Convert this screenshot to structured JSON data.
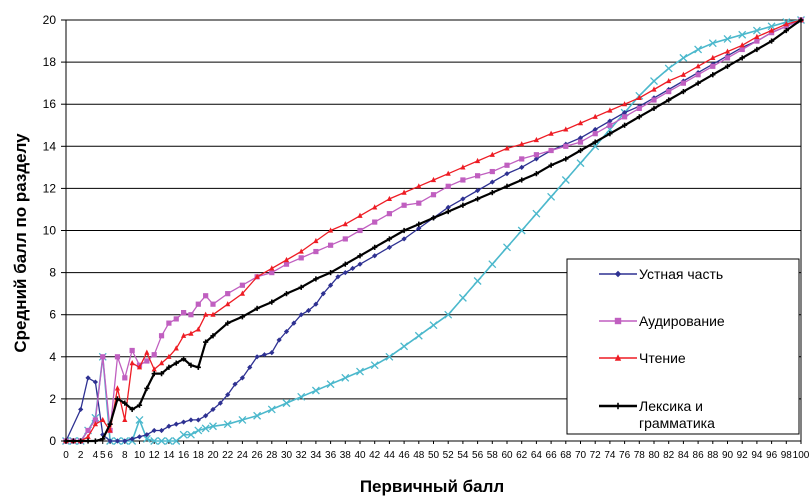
{
  "chart_data": {
    "type": "line",
    "title": "",
    "xlabel": "Первичный балл",
    "ylabel": "Средний балл по разделу",
    "xlim": [
      0,
      100
    ],
    "ylim": [
      0,
      20
    ],
    "yticks": [
      0,
      2,
      4,
      6,
      8,
      10,
      12,
      14,
      16,
      18,
      20
    ],
    "xtick_labels": [
      "0",
      "2",
      "4",
      "5",
      "6",
      "8",
      "10",
      "12",
      "14",
      "16",
      "18",
      "20",
      "22",
      "24",
      "26",
      "28",
      "30",
      "32",
      "34",
      "36",
      "38",
      "40",
      "42",
      "44",
      "46",
      "48",
      "50",
      "52",
      "54",
      "56",
      "58",
      "60",
      "62",
      "64",
      "66",
      "68",
      "70",
      "72",
      "74",
      "76",
      "78",
      "80",
      "82",
      "84",
      "86",
      "88",
      "90",
      "92",
      "94",
      "96",
      "98",
      "100"
    ],
    "grid": "horizontal",
    "legend_position": "lower-right",
    "series": [
      {
        "name": "Устная часть",
        "color": "#2e3192",
        "marker": "diamond",
        "x": [
          0,
          2,
          3,
          4,
          5,
          6,
          7,
          8,
          9,
          10,
          11,
          12,
          13,
          14,
          15,
          16,
          17,
          18,
          19,
          20,
          21,
          22,
          23,
          24,
          25,
          26,
          27,
          28,
          29,
          30,
          31,
          32,
          33,
          34,
          35,
          36,
          37,
          38,
          39,
          40,
          42,
          44,
          46,
          48,
          50,
          52,
          54,
          56,
          58,
          60,
          62,
          64,
          66,
          68,
          70,
          72,
          74,
          76,
          78,
          80,
          82,
          84,
          86,
          88,
          90,
          92,
          94,
          96,
          98,
          100
        ],
        "y": [
          0,
          1.5,
          3,
          2.8,
          0.3,
          0,
          0,
          0,
          0.1,
          0.2,
          0.3,
          0.5,
          0.5,
          0.7,
          0.8,
          0.9,
          1.0,
          1.0,
          1.2,
          1.5,
          1.8,
          2.2,
          2.7,
          3.0,
          3.5,
          4.0,
          4.1,
          4.2,
          4.8,
          5.2,
          5.6,
          6.0,
          6.2,
          6.5,
          7.0,
          7.4,
          7.8,
          8.0,
          8.2,
          8.4,
          8.8,
          9.2,
          9.6,
          10.1,
          10.6,
          11.1,
          11.5,
          11.9,
          12.3,
          12.7,
          13.0,
          13.4,
          13.8,
          14.1,
          14.4,
          14.8,
          15.2,
          15.6,
          15.9,
          16.3,
          16.7,
          17.1,
          17.5,
          17.9,
          18.3,
          18.7,
          19.0,
          19.4,
          19.7,
          20.0
        ]
      },
      {
        "name": "Аудирование",
        "color": "#c05fc0",
        "marker": "square",
        "x": [
          0,
          1,
          2,
          3,
          4,
          5,
          6,
          7,
          8,
          9,
          10,
          11,
          12,
          13,
          14,
          15,
          16,
          17,
          18,
          19,
          20,
          22,
          24,
          26,
          28,
          30,
          32,
          34,
          36,
          38,
          40,
          42,
          44,
          46,
          48,
          50,
          52,
          54,
          56,
          58,
          60,
          62,
          64,
          66,
          68,
          70,
          72,
          74,
          76,
          78,
          80,
          82,
          84,
          86,
          88,
          90,
          92,
          94,
          96,
          98,
          100
        ],
        "y": [
          0,
          0,
          0,
          0.5,
          1.0,
          4.0,
          0.5,
          4.0,
          3.0,
          4.3,
          3.6,
          3.8,
          4.1,
          5.0,
          5.6,
          5.8,
          6.1,
          6.0,
          6.5,
          6.9,
          6.5,
          7.0,
          7.4,
          7.8,
          8.0,
          8.4,
          8.7,
          9.0,
          9.3,
          9.6,
          10.0,
          10.4,
          10.8,
          11.2,
          11.3,
          11.7,
          12.1,
          12.4,
          12.6,
          12.8,
          13.1,
          13.4,
          13.6,
          13.8,
          14.0,
          14.2,
          14.6,
          15.0,
          15.4,
          15.8,
          16.2,
          16.6,
          17.0,
          17.4,
          17.8,
          18.2,
          18.6,
          19.0,
          19.4,
          19.7,
          20.0
        ]
      },
      {
        "name": "Чтение",
        "color": "#ee1c24",
        "marker": "triangle",
        "x": [
          0,
          1,
          2,
          3,
          4,
          5,
          6,
          7,
          8,
          9,
          10,
          11,
          12,
          13,
          14,
          15,
          16,
          17,
          18,
          19,
          20,
          22,
          24,
          26,
          28,
          30,
          32,
          34,
          36,
          38,
          40,
          42,
          44,
          46,
          48,
          50,
          52,
          54,
          56,
          58,
          60,
          62,
          64,
          66,
          68,
          70,
          72,
          74,
          76,
          78,
          80,
          82,
          84,
          86,
          88,
          90,
          92,
          94,
          96,
          98,
          100
        ],
        "y": [
          0,
          0,
          0,
          0.2,
          0.8,
          1.0,
          0.5,
          2.5,
          1.0,
          3.7,
          3.5,
          4.2,
          3.4,
          3.7,
          4.0,
          4.4,
          5.0,
          5.1,
          5.3,
          6.0,
          6.0,
          6.5,
          7.0,
          7.8,
          8.2,
          8.6,
          9.0,
          9.5,
          10.0,
          10.3,
          10.7,
          11.1,
          11.5,
          11.8,
          12.1,
          12.4,
          12.7,
          13.0,
          13.3,
          13.6,
          13.9,
          14.1,
          14.3,
          14.6,
          14.8,
          15.1,
          15.4,
          15.7,
          16.0,
          16.3,
          16.7,
          17.1,
          17.4,
          17.8,
          18.2,
          18.5,
          18.8,
          19.2,
          19.5,
          19.8,
          20.0
        ]
      },
      {
        "name": "Лексика и грамматика",
        "color": "#000000",
        "marker": "plus",
        "x": [
          0,
          1,
          2,
          3,
          4,
          5,
          6,
          7,
          8,
          9,
          10,
          11,
          12,
          13,
          14,
          15,
          16,
          17,
          18,
          19,
          20,
          22,
          24,
          26,
          28,
          30,
          32,
          34,
          36,
          38,
          40,
          42,
          44,
          46,
          48,
          50,
          52,
          54,
          56,
          58,
          60,
          62,
          64,
          66,
          68,
          70,
          72,
          74,
          76,
          78,
          80,
          82,
          84,
          86,
          88,
          90,
          92,
          94,
          96,
          98,
          100
        ],
        "y": [
          0,
          0,
          0,
          0,
          0,
          0.1,
          0.8,
          2.0,
          1.8,
          1.5,
          1.7,
          2.5,
          3.2,
          3.2,
          3.5,
          3.7,
          3.9,
          3.6,
          3.5,
          4.7,
          5.0,
          5.6,
          5.9,
          6.3,
          6.6,
          7.0,
          7.3,
          7.7,
          8.0,
          8.4,
          8.8,
          9.2,
          9.6,
          10.0,
          10.3,
          10.6,
          10.9,
          11.2,
          11.5,
          11.8,
          12.1,
          12.4,
          12.7,
          13.1,
          13.4,
          13.8,
          14.2,
          14.6,
          15.0,
          15.4,
          15.8,
          16.2,
          16.6,
          17.0,
          17.4,
          17.8,
          18.2,
          18.6,
          19.0,
          19.5,
          20.0
        ]
      },
      {
        "name": "",
        "color": "#4bb8cc",
        "marker": "x",
        "x": [
          0,
          1,
          2,
          3,
          4,
          5,
          6,
          7,
          8,
          9,
          10,
          11,
          12,
          13,
          14,
          15,
          16,
          17,
          18,
          19,
          20,
          22,
          24,
          26,
          28,
          30,
          32,
          34,
          36,
          38,
          40,
          42,
          44,
          46,
          48,
          50,
          52,
          54,
          56,
          58,
          60,
          62,
          64,
          66,
          68,
          70,
          72,
          74,
          76,
          78,
          80,
          82,
          84,
          86,
          88,
          90,
          92,
          94,
          96,
          98,
          100
        ],
        "y": [
          0,
          0,
          0,
          0.5,
          1.1,
          4.0,
          0,
          0,
          0,
          0,
          1.0,
          0.1,
          0,
          0,
          0,
          0,
          0.3,
          0.3,
          0.5,
          0.6,
          0.7,
          0.8,
          1.0,
          1.2,
          1.5,
          1.8,
          2.1,
          2.4,
          2.7,
          3.0,
          3.3,
          3.6,
          4.0,
          4.5,
          5.0,
          5.5,
          6.0,
          6.8,
          7.6,
          8.4,
          9.2,
          10.0,
          10.8,
          11.6,
          12.4,
          13.2,
          14.0,
          14.8,
          15.6,
          16.4,
          17.1,
          17.7,
          18.2,
          18.6,
          18.9,
          19.1,
          19.3,
          19.5,
          19.7,
          19.9,
          20.0
        ]
      }
    ],
    "legend": [
      {
        "label": "Устная часть",
        "series": 0
      },
      {
        "label": "Аудирование",
        "series": 1
      },
      {
        "label": "Чтение",
        "series": 2
      },
      {
        "label": "Лексика и грамматика",
        "lines": [
          "Лексика и",
          "грамматика"
        ],
        "series": 3
      }
    ]
  }
}
